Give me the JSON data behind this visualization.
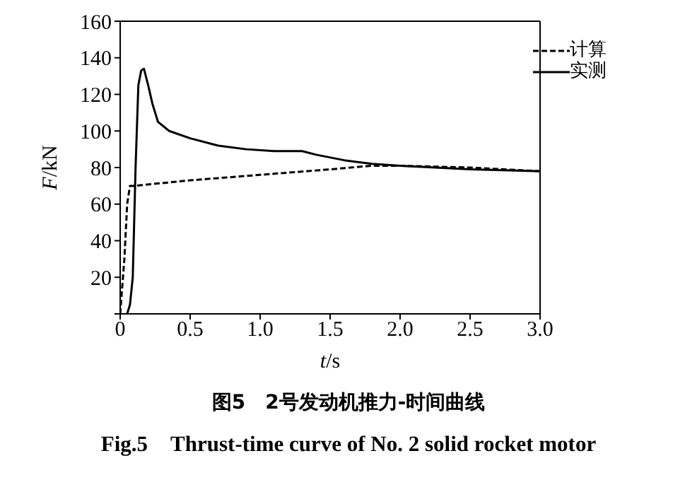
{
  "chart_data": {
    "type": "line",
    "title": "图5　2号发动机推力-时间曲线",
    "subtitle": "Fig.5　Thrust-time curve of No. 2 solid rocket motor",
    "xlabel": "t/s",
    "ylabel": "F/kN",
    "xlim": [
      0,
      3.0
    ],
    "xticks": [
      0,
      {
        "value": 0.5,
        "label": "0.5"
      },
      {
        "value": 1,
        "label": "1.0"
      },
      {
        "value": 1.5,
        "label": "1.5"
      },
      {
        "value": 2,
        "label": "2.0"
      },
      {
        "value": 2.5,
        "label": "2.5"
      },
      {
        "value": 3,
        "label": "3.0"
      }
    ],
    "ylim": [
      0,
      160
    ],
    "yticks": [
      {
        "value": 0,
        "label": null
      },
      20,
      40,
      60,
      80,
      100,
      120,
      140,
      160
    ],
    "grid": false,
    "legend": "top right",
    "marker": "none",
    "series": [
      {
        "name": "计算",
        "color": "#000000",
        "line_style": "dashed",
        "x": [
          0,
          0.03,
          0.05,
          0.07,
          0.1,
          0.5,
          1.0,
          1.5,
          1.8,
          2.0,
          2.5,
          3.0
        ],
        "values": [
          0,
          30,
          60,
          70,
          70,
          73,
          76,
          79,
          81,
          81,
          80,
          78
        ]
      },
      {
        "name": "实测",
        "color": "#000000",
        "line_style": "solid",
        "x": [
          0.05,
          0.07,
          0.09,
          0.11,
          0.13,
          0.15,
          0.17,
          0.2,
          0.23,
          0.27,
          0.35,
          0.5,
          0.7,
          0.9,
          1.1,
          1.2,
          1.3,
          1.4,
          1.6,
          1.8,
          2.0,
          2.5,
          3.0
        ],
        "values": [
          0,
          5,
          20,
          80,
          125,
          133,
          134,
          125,
          115,
          105,
          100,
          96,
          92,
          90,
          89,
          89,
          89,
          87,
          84,
          82,
          81,
          79,
          78
        ]
      }
    ]
  }
}
